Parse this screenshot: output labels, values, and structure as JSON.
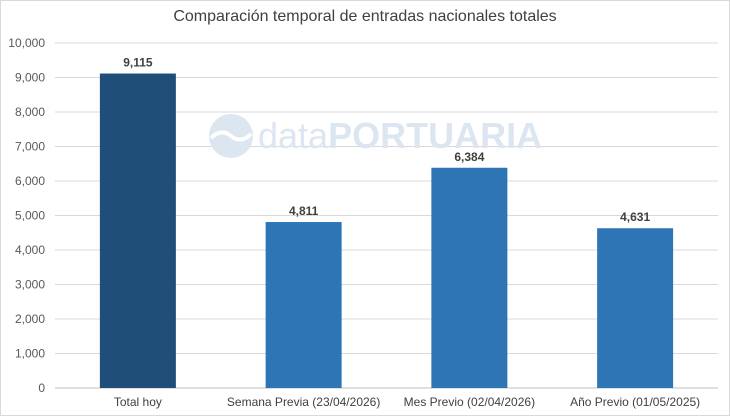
{
  "chart_data": {
    "type": "bar",
    "title": "Comparación temporal de entradas nacionales totales",
    "categories": [
      "Total hoy",
      "Semana Previa (23/04/2026)",
      "Mes Previo (02/04/2026)",
      "Año Previo (01/05/2025)"
    ],
    "values": [
      9115,
      4811,
      6384,
      4631
    ],
    "data_labels": [
      "9,115",
      "4,811",
      "6,384",
      "4,631"
    ],
    "bar_colors": [
      "#1f4e79",
      "#2e75b6",
      "#2e75b6",
      "#2e75b6"
    ],
    "ylim": [
      0,
      10000
    ],
    "yticks": [
      0,
      1000,
      2000,
      3000,
      4000,
      5000,
      6000,
      7000,
      8000,
      9000,
      10000
    ],
    "ytick_labels": [
      "0",
      "1,000",
      "2,000",
      "3,000",
      "4,000",
      "5,000",
      "6,000",
      "7,000",
      "8,000",
      "9,000",
      "10,000"
    ],
    "grid": true,
    "legend": "none",
    "xlabel": "",
    "ylabel": ""
  },
  "watermark": {
    "text_light": "data",
    "text_bold": "PORTUARIA",
    "color": "#dce6f1"
  },
  "colors": {
    "gridline": "#d9d9d9",
    "axis": "#bfbfbf"
  }
}
